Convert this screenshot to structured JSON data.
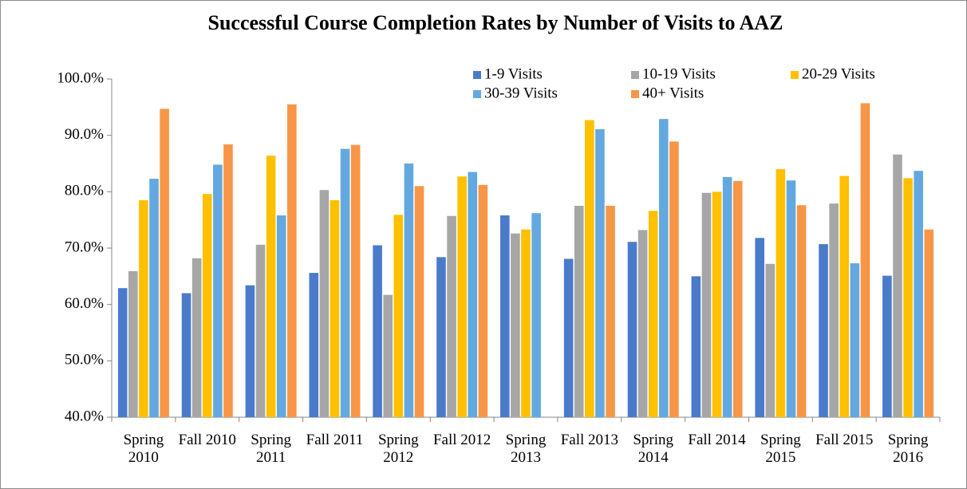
{
  "chart_data": {
    "type": "bar",
    "title": "Successful Course Completion Rates by Number of Visits to AAZ",
    "categories": [
      "Spring 2010",
      "Fall 2010",
      "Spring 2011",
      "Fall 2011",
      "Spring 2012",
      "Fall 2012",
      "Spring 2013",
      "Fall 2013",
      "Spring 2014",
      "Fall 2014",
      "Spring 2015",
      "Fall 2015",
      "Spring 2016"
    ],
    "series": [
      {
        "name": "1-9 Visits",
        "color": "#4a7bcb",
        "values": [
          62.9,
          62.0,
          63.4,
          65.6,
          70.5,
          68.4,
          75.8,
          68.1,
          71.1,
          65.0,
          71.8,
          70.7,
          65.1
        ]
      },
      {
        "name": "10-19 Visits",
        "color": "#a6a6a6",
        "values": [
          65.9,
          68.2,
          70.6,
          80.3,
          61.7,
          75.7,
          72.6,
          77.5,
          73.2,
          79.8,
          67.2,
          77.9,
          86.6
        ]
      },
      {
        "name": "20-29 Visits",
        "color": "#ffc000",
        "values": [
          78.5,
          79.6,
          86.4,
          78.5,
          75.9,
          82.7,
          73.3,
          92.7,
          76.6,
          80.0,
          84.0,
          82.8,
          82.4
        ]
      },
      {
        "name": "30-39 Visits",
        "color": "#63a8e0",
        "values": [
          82.3,
          84.8,
          75.8,
          87.6,
          85.0,
          83.5,
          76.2,
          91.1,
          92.9,
          82.6,
          82.0,
          67.3,
          83.7
        ]
      },
      {
        "name": "40+ Visits",
        "color": "#f79646",
        "values": [
          94.7,
          88.4,
          95.5,
          88.3,
          81.0,
          81.2,
          null,
          77.5,
          88.9,
          81.9,
          77.6,
          95.7,
          73.3
        ]
      }
    ],
    "ylim": [
      40,
      100
    ],
    "yticks": [
      {
        "value": 40,
        "label": "40.0%"
      },
      {
        "value": 50,
        "label": "50.0%"
      },
      {
        "value": 60,
        "label": "60.0%"
      },
      {
        "value": 70,
        "label": "70.0%"
      },
      {
        "value": 80,
        "label": "80.0%"
      },
      {
        "value": 90,
        "label": "90.0%"
      },
      {
        "value": 100,
        "label": "100.0%"
      }
    ],
    "grid": false,
    "legend": "top-right"
  }
}
